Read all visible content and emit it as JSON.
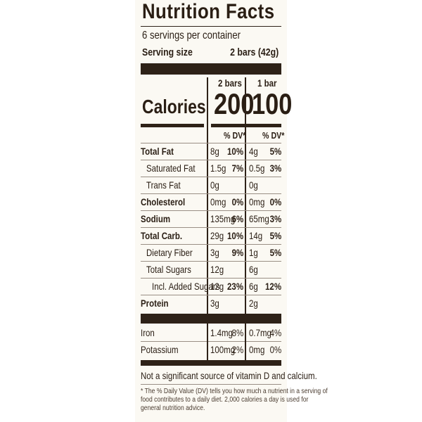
{
  "label": {
    "title": "Nutrition Facts",
    "servings": "6 servings per container",
    "serving_size_label": "Serving size",
    "serving_size_value": "2 bars (42g)",
    "columns": [
      {
        "header": "2 bars",
        "calories": "200"
      },
      {
        "header": "1 bar",
        "calories": "100"
      }
    ],
    "calories_label": "Calories",
    "dv_header": "% DV*",
    "nutrients": [
      {
        "name": "Total Fat",
        "bold": true,
        "c1_amt": "8g",
        "c1_dv": "10%",
        "c2_amt": "4g",
        "c2_dv": "5%"
      },
      {
        "name": "Saturated Fat",
        "indent": 1,
        "c1_amt": "1.5g",
        "c1_dv": "7%",
        "c2_amt": "0.5g",
        "c2_dv": "3%"
      },
      {
        "name": "Trans Fat",
        "indent": 1,
        "c1_amt": "0g",
        "c1_dv": "",
        "c2_amt": "0g",
        "c2_dv": ""
      },
      {
        "name": "Cholesterol",
        "bold": true,
        "c1_amt": "0mg",
        "c1_dv": "0%",
        "c2_amt": "0mg",
        "c2_dv": "0%"
      },
      {
        "name": "Sodium",
        "bold": true,
        "c1_amt": "135mg",
        "c1_dv": "6%",
        "c2_amt": "65mg",
        "c2_dv": "3%"
      },
      {
        "name": "Total Carb.",
        "bold": true,
        "c1_amt": "29g",
        "c1_dv": "10%",
        "c2_amt": "14g",
        "c2_dv": "5%"
      },
      {
        "name": "Dietary Fiber",
        "indent": 1,
        "c1_amt": "3g",
        "c1_dv": "9%",
        "c2_amt": "1g",
        "c2_dv": "5%"
      },
      {
        "name": "Total Sugars",
        "indent": 1,
        "c1_amt": "12g",
        "c1_dv": "",
        "c2_amt": "6g",
        "c2_dv": ""
      },
      {
        "name": "Incl. Added Sugars",
        "indent": 2,
        "c1_amt": "12g",
        "c1_dv": "23%",
        "c2_amt": "6g",
        "c2_dv": "12%"
      },
      {
        "name": "Protein",
        "bold": true,
        "c1_amt": "3g",
        "c1_dv": "",
        "c2_amt": "2g",
        "c2_dv": ""
      },
      {
        "name": "Iron",
        "c1_amt": "1.4mg",
        "c1_dv": "8%",
        "c2_amt": "0.7mg",
        "c2_dv": "4%"
      },
      {
        "name": "Potassium",
        "c1_amt": "100mg",
        "c1_dv": "2%",
        "c2_amt": "0mg",
        "c2_dv": "0%"
      }
    ],
    "note": "Not a significant source of vitamin D and calcium.",
    "footnote_lines": [
      "* The % Daily Value (DV) tells you how much a nutrient in a serving of",
      "food contributes to a daily diet. 2,000 calories a day is used for",
      "general nutrition advice."
    ]
  }
}
